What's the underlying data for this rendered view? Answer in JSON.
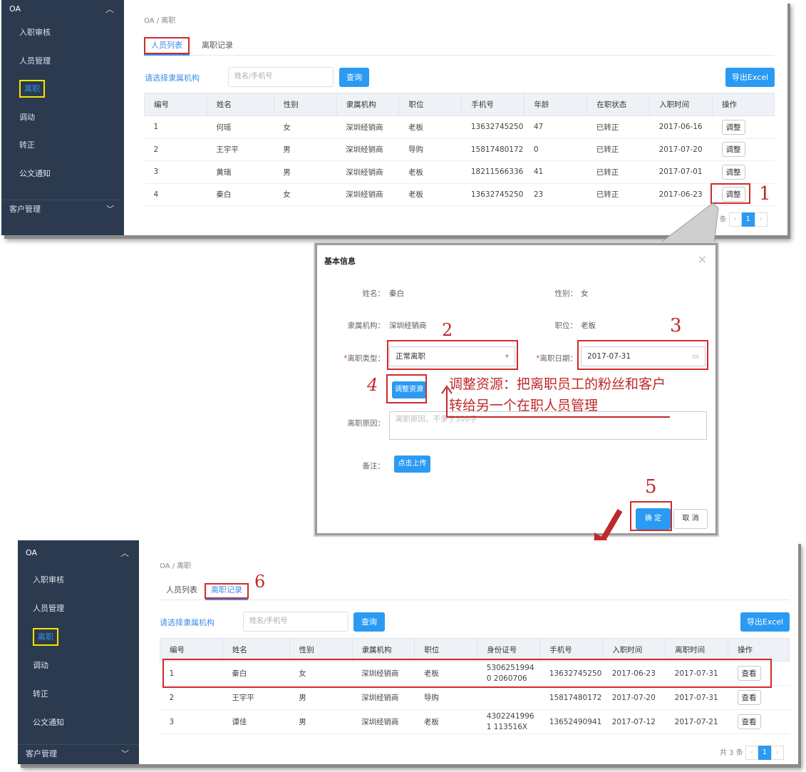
{
  "sidebar": {
    "group": "OA",
    "items": [
      "入职审核",
      "人员管理",
      "离职",
      "调动",
      "转正",
      "公文通知"
    ],
    "active_index": 2,
    "bottom_group": "客户管理"
  },
  "breadcrumb": {
    "root": "OA",
    "sep": "/",
    "current": "离职"
  },
  "tabs": [
    "人员列表",
    "离职记录"
  ],
  "filter": {
    "label": "请选择隶属机构",
    "placeholder": "姓名/手机号",
    "search": "查询",
    "export": "导出Excel"
  },
  "top_table": {
    "headers": [
      "编号",
      "姓名",
      "性别",
      "隶属机构",
      "职位",
      "手机号",
      "年龄",
      "在职状态",
      "入职时间",
      "操作"
    ],
    "rows": [
      [
        "1",
        "何瑶",
        "女",
        "深圳经销商",
        "老板",
        "13632745250",
        "47",
        "已转正",
        "2017-06-16",
        "调整"
      ],
      [
        "2",
        "王宇平",
        "男",
        "深圳经销商",
        "导购",
        "15817480172",
        "0",
        "已转正",
        "2017-07-20",
        "调整"
      ],
      [
        "3",
        "黄瑞",
        "男",
        "深圳经销商",
        "老板",
        "18211566336",
        "41",
        "已转正",
        "2017-07-01",
        "调整"
      ],
      [
        "4",
        "秦白",
        "女",
        "深圳经销商",
        "老板",
        "13632745250",
        "23",
        "已转正",
        "2017-06-23",
        "调整"
      ]
    ],
    "pager": {
      "total": "4 条",
      "page": "1",
      "prev": "‹",
      "next": "›"
    }
  },
  "dialog": {
    "title": "基本信息",
    "close": "×",
    "name_label": "姓名：",
    "name": "秦白",
    "gender_label": "性别：",
    "gender": "女",
    "org_label": "隶属机构：",
    "org": "深圳经销商",
    "position_label": "职位：",
    "position": "老板",
    "type_label": "离职类型：",
    "type": "正常离职",
    "date_label": "离职日期：",
    "date": "2017-07-31",
    "adjust_btn": "调整资源",
    "reason_label": "离职原因：",
    "reason_placeholder": "离职原因，不多于300字",
    "remark_label": "备注：",
    "upload_btn": "点击上传",
    "ok": "确 定",
    "cancel": "取 消",
    "req": "*"
  },
  "annotations": {
    "n1": "1",
    "n2": "2",
    "n3": "3",
    "n4": "4",
    "n5": "5",
    "n6": "6",
    "note_line1": "调整资源：把离职员工的粉丝和客户",
    "note_line2": "转给另一个在职人员管理",
    "color": "#c0282a"
  },
  "bottom_table": {
    "headers": [
      "编号",
      "姓名",
      "性别",
      "隶属机构",
      "职位",
      "身份证号",
      "手机号",
      "入职时间",
      "离职时间",
      "操作"
    ],
    "rows": [
      [
        "1",
        "秦白",
        "女",
        "深圳经销商",
        "老板",
        "53062519940 2060706",
        "13632745250",
        "2017-06-23",
        "2017-07-31",
        "查看"
      ],
      [
        "2",
        "王宇平",
        "男",
        "深圳经销商",
        "导购",
        "",
        "15817480172",
        "2017-07-20",
        "2017-07-31",
        "查看"
      ],
      [
        "3",
        "谭佳",
        "男",
        "深圳经销商",
        "老板",
        "43022419961 113516X",
        "13652490941",
        "2017-07-12",
        "2017-07-21",
        "查看"
      ]
    ],
    "pager": {
      "total": "共 3 条",
      "page": "1",
      "prev": "‹",
      "next": "›"
    }
  },
  "colors": {
    "sidebar": "#2b3a4f",
    "accent": "#2b9af3",
    "highlight_yellow": "#f5e500",
    "annotation_red": "#c0282a"
  }
}
